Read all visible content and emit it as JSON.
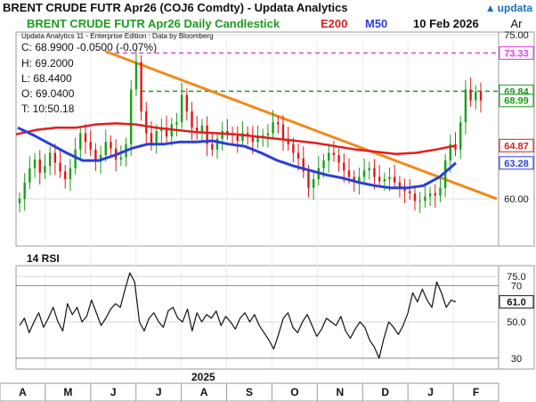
{
  "header": {
    "title": "BRENT CRUDE FUTR  Apr26 (COJ6 Comdty) -  Updata Analytics",
    "logo": "updata"
  },
  "legend": {
    "instrument": "BRENT CRUDE FUTR  Apr26 Daily Candlestick",
    "ma200": "E200",
    "ma50": "M50",
    "date": "10 Feb 2026",
    "axis_label": "Ar"
  },
  "info": {
    "header": "Updata Analytics 11 - Enterprise Edition : Data by Bloomberg",
    "close": "C: 68.9900  -0.0500 (-0.07%)",
    "high": "H: 69.2000",
    "low": "L: 68.4400",
    "open": "O: 69.0400",
    "time": "T: 10:50.18"
  },
  "rsi_title": "14 RSI",
  "year_label": "2025",
  "colors": {
    "ma200": "#e01e1e",
    "ma50": "#2a3fd6",
    "trendline": "#f08a1c",
    "resistance": "#1e9a1e",
    "high_line": "#e040e0",
    "up_candle": "#18a018",
    "down_candle": "#e01818",
    "instrument_text": "#1e9a1e"
  },
  "chart_data": [
    {
      "type": "candlestick",
      "name": "BRENT CRUDE FUTR Apr26 Daily Candlestick",
      "x_months": [
        "A",
        "M",
        "J",
        "J",
        "A",
        "S",
        "O",
        "N",
        "D",
        "J",
        "F"
      ],
      "ylim": [
        56.5,
        75.0
      ],
      "y_ticks": [
        {
          "value": 75.0,
          "label": "75.00"
        },
        {
          "value": 60.0,
          "label": "60.00"
        }
      ],
      "price_tags": [
        {
          "value": 73.33,
          "label": "73.33",
          "color": "#e040e0"
        },
        {
          "value": 69.84,
          "label": "69.84",
          "color": "#1e9a1e"
        },
        {
          "value": 68.99,
          "label": "68.99",
          "color": "#1e9a1e"
        },
        {
          "value": 64.87,
          "label": "64.87",
          "color": "#e01e1e"
        },
        {
          "value": 63.28,
          "label": "63.28",
          "color": "#2a3fd6"
        }
      ],
      "close_series": [
        60.0,
        61.5,
        62.8,
        63.6,
        62.4,
        63.0,
        64.2,
        63.3,
        62.5,
        61.8,
        62.8,
        64.5,
        66.0,
        65.2,
        64.5,
        63.4,
        64.0,
        65.2,
        64.6,
        63.6,
        63.8,
        65.0,
        70.0,
        72.5,
        68.0,
        66.0,
        65.0,
        66.2,
        66.5,
        65.7,
        66.8,
        67.0,
        69.5,
        68.0,
        66.5,
        66.0,
        66.7,
        65.0,
        64.5,
        65.5,
        66.2,
        66.0,
        65.8,
        65.3,
        66.0,
        65.8,
        65.2,
        65.6,
        65.8,
        66.0,
        67.0,
        66.8,
        65.5,
        65.0,
        64.2,
        63.7,
        62.5,
        61.0,
        61.8,
        62.8,
        63.5,
        64.2,
        64.0,
        63.3,
        62.6,
        62.0,
        61.5,
        62.0,
        62.6,
        62.8,
        62.0,
        61.6,
        61.8,
        62.0,
        61.5,
        61.0,
        60.7,
        60.5,
        59.8,
        59.8,
        60.2,
        60.5,
        60.3,
        61.0,
        63.5,
        65.0,
        64.5,
        67.0,
        70.0,
        69.0,
        69.8,
        68.99
      ],
      "ema200": [
        65.9,
        66.3,
        66.5,
        66.5,
        66.8,
        66.9,
        66.8,
        66.5,
        66.3,
        66.1,
        66.0,
        65.9,
        65.7,
        65.5,
        65.3,
        65.1,
        64.8,
        64.5,
        64.3,
        64.1,
        64.2,
        64.5,
        64.87
      ],
      "ma50": [
        66.5,
        65.8,
        65.0,
        64.2,
        63.5,
        63.5,
        64.0,
        64.6,
        65.0,
        65.0,
        65.2,
        65.2,
        65.3,
        65.0,
        64.8,
        64.2,
        63.5,
        63.0,
        62.6,
        62.2,
        61.9,
        61.5,
        61.2,
        61.0,
        61.0,
        61.2,
        62.0,
        63.28
      ],
      "trendline": {
        "start": 73.5,
        "end": 60.0
      },
      "resistance_level": 69.84,
      "high_level": 73.33
    },
    {
      "type": "line",
      "name": "14 RSI",
      "ylim": [
        25,
        80
      ],
      "y_ticks": [
        {
          "value": 75.0,
          "label": "75.0"
        },
        {
          "value": 70,
          "label": "70"
        },
        {
          "value": 50.0,
          "label": "50.0"
        },
        {
          "value": 30,
          "label": "30"
        }
      ],
      "last_value_label": "61.0",
      "values": [
        48,
        52,
        44,
        50,
        55,
        47,
        52,
        58,
        50,
        45,
        60,
        54,
        58,
        50,
        53,
        62,
        55,
        48,
        52,
        57,
        60,
        58,
        68,
        77,
        72,
        50,
        45,
        52,
        55,
        50,
        47,
        56,
        58,
        52,
        50,
        57,
        45,
        55,
        50,
        54,
        52,
        56,
        48,
        53,
        50,
        46,
        52,
        55,
        50,
        54,
        48,
        44,
        40,
        35,
        43,
        52,
        55,
        47,
        44,
        50,
        54,
        48,
        42,
        46,
        52,
        50,
        48,
        53,
        45,
        41,
        46,
        50,
        47,
        40,
        36,
        30,
        41,
        50,
        47,
        43,
        48,
        55,
        66,
        61,
        68,
        62,
        58,
        72,
        66,
        58,
        62,
        61
      ]
    }
  ]
}
